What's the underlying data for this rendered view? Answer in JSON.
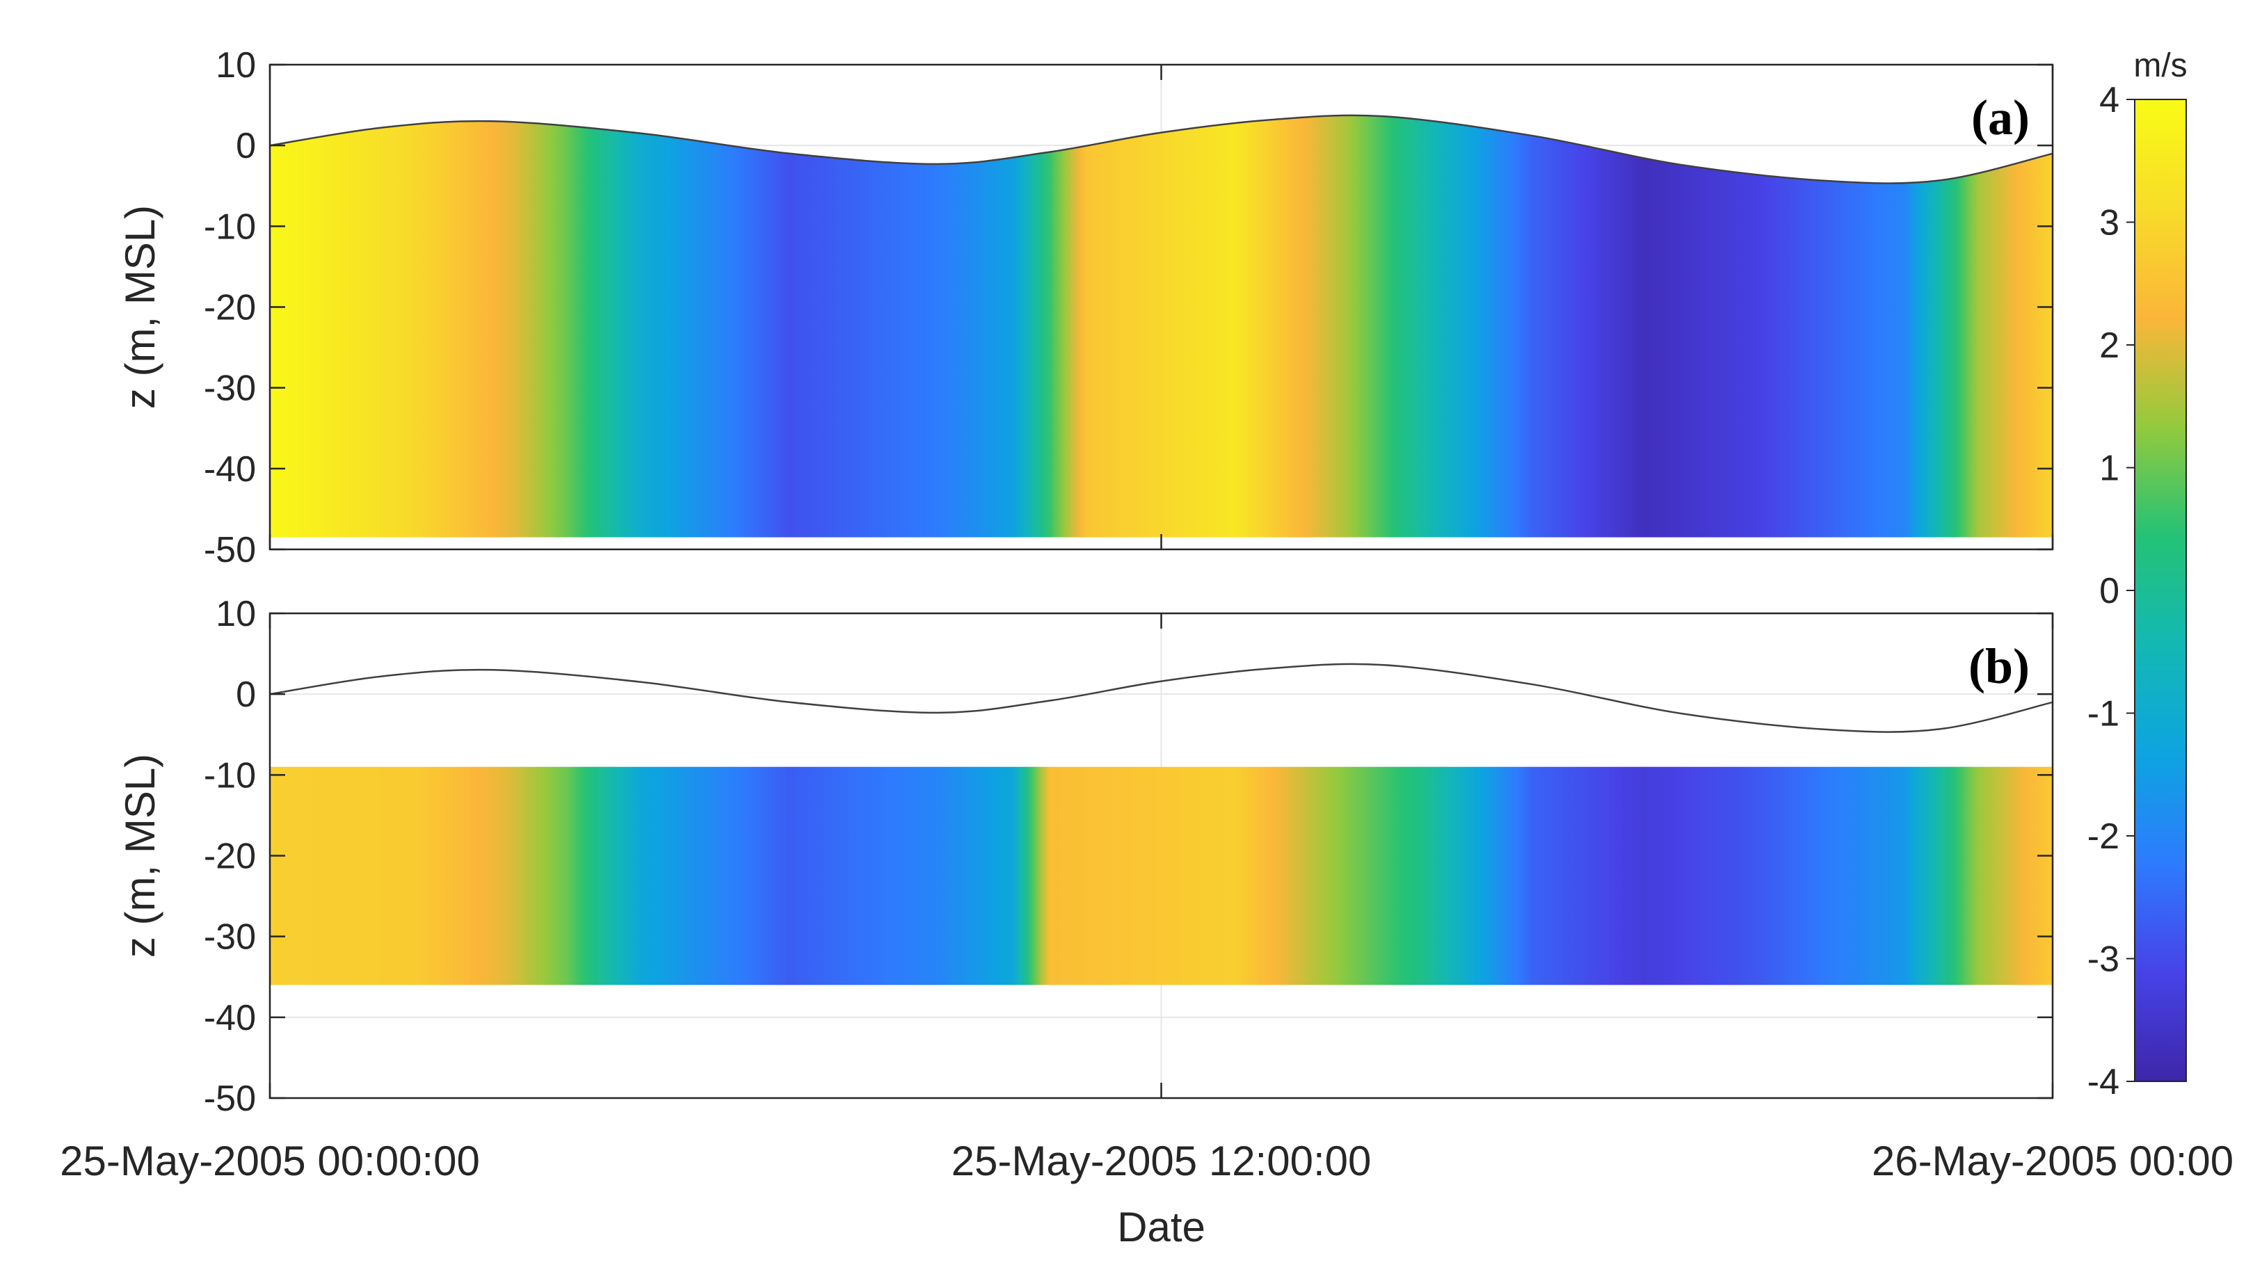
{
  "chart_data": {
    "type": "heatmap",
    "xlabel": "Date",
    "x_ticks": [
      "25-May-2005 00:00:00",
      "25-May-2005 12:00:00",
      "26-May-2005 00:00"
    ],
    "x_range_hours": [
      0,
      24
    ],
    "colorbar": {
      "unit": "m/s",
      "range": [
        -4,
        4
      ],
      "ticks": [
        4,
        3,
        2,
        1,
        0,
        -1,
        -2,
        -3,
        -4
      ],
      "colors": [
        "#3e26a8",
        "#4743e8",
        "#2e7bfe",
        "#0da4e0",
        "#13b8b4",
        "#24c276",
        "#93ca3d",
        "#fbb639",
        "#f8dc2a",
        "#f9fb15"
      ]
    },
    "panels": [
      {
        "label": "(a)",
        "ylabel": "z (m, MSL)",
        "ylim": [
          -50,
          10
        ],
        "yticks": [
          10,
          0,
          -10,
          -20,
          -30,
          -40,
          -50
        ],
        "bottom_depth": -48.5,
        "surface_elevation": {
          "hours": [
            0,
            1.5,
            3,
            5,
            7,
            9,
            10.5,
            12,
            13.5,
            15,
            17,
            19,
            21,
            22.5,
            24
          ],
          "z": [
            0,
            2.2,
            3,
            1.5,
            -1,
            -2.3,
            -0.8,
            1.6,
            3.2,
            3.6,
            1.2,
            -2.4,
            -4.4,
            -4.3,
            -1
          ]
        },
        "depth_averaged_velocity": {
          "hours": [
            0,
            2,
            3.3,
            4,
            5,
            7,
            9,
            10,
            11,
            13,
            14.5,
            15.5,
            17,
            18.5,
            20,
            22,
            23,
            24
          ],
          "values": [
            3.9,
            3.0,
            2.0,
            1.0,
            -1.0,
            -2.9,
            -2.2,
            -1.4,
            2.6,
            3.4,
            1.5,
            -0.2,
            -2.6,
            -3.7,
            -3.2,
            -2.0,
            1.5,
            2.9
          ]
        }
      },
      {
        "label": "(b)",
        "ylabel": "z (m, MSL)",
        "ylim": [
          -50,
          10
        ],
        "yticks": [
          10,
          0,
          -10,
          -20,
          -30,
          -40,
          -50
        ],
        "data_top": -9,
        "data_bottom": -36,
        "surface_elevation": {
          "hours": [
            0,
            1.5,
            3,
            5,
            7,
            9,
            10.5,
            12,
            13.5,
            15,
            17,
            19,
            21,
            22.5,
            24
          ],
          "z": [
            0,
            2.2,
            3,
            1.5,
            -1,
            -2.3,
            -0.8,
            1.6,
            3.2,
            3.6,
            1.2,
            -2.4,
            -4.4,
            -4.3,
            -1
          ]
        },
        "depth_averaged_velocity": {
          "hours": [
            0,
            2,
            3.2,
            4,
            5,
            7,
            9,
            10,
            10.5,
            13,
            14.2,
            15.5,
            17,
            18.5,
            20,
            22,
            23,
            24
          ],
          "values": [
            2.8,
            2.7,
            2.0,
            1.0,
            -1.2,
            -2.7,
            -2.0,
            -1.2,
            2.4,
            2.8,
            1.5,
            0.2,
            -2.6,
            -3.3,
            -2.8,
            -1.6,
            1.4,
            2.7
          ]
        }
      }
    ]
  }
}
